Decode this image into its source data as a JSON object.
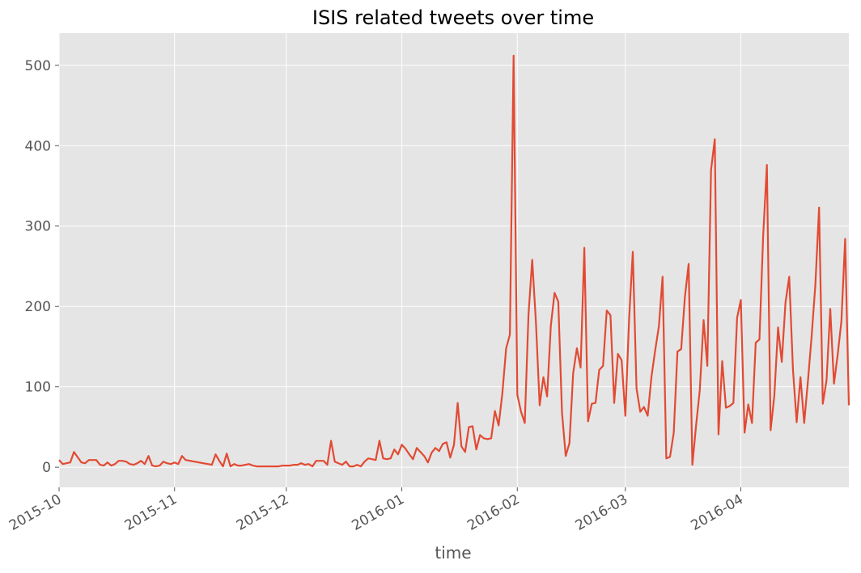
{
  "chart_data": {
    "type": "line",
    "title": "ISIS related tweets over time",
    "xlabel": "time",
    "ylabel": "",
    "x_axis": {
      "type": "date",
      "range": [
        "2015-10-01",
        "2016-04-30"
      ],
      "ticks": [
        "2015-10",
        "2015-11",
        "2015-12",
        "2016-01",
        "2016-02",
        "2016-03",
        "2016-04"
      ]
    },
    "y_axis": {
      "range": [
        -25,
        540
      ],
      "ticks": [
        "0",
        "100",
        "200",
        "300",
        "400",
        "500"
      ]
    },
    "grid": true,
    "colors": {
      "line": "#e24a33",
      "plot_bg": "#e5e5e5",
      "grid": "#ffffff"
    },
    "series": [
      {
        "dates": [
          "2015-10-01",
          "2015-10-02",
          "2015-10-03",
          "2015-10-04",
          "2015-10-05",
          "2015-10-07",
          "2015-10-08",
          "2015-10-09",
          "2015-10-11",
          "2015-10-12",
          "2015-10-13",
          "2015-10-14",
          "2015-10-15",
          "2015-10-16",
          "2015-10-17",
          "2015-10-18",
          "2015-10-19",
          "2015-10-20",
          "2015-10-21",
          "2015-10-22",
          "2015-10-23",
          "2015-10-24",
          "2015-10-25",
          "2015-10-26",
          "2015-10-27",
          "2015-10-28",
          "2015-10-29",
          "2015-10-30",
          "2015-10-31",
          "2015-11-01",
          "2015-11-02",
          "2015-11-03",
          "2015-11-04",
          "2015-11-11",
          "2015-11-12",
          "2015-11-13",
          "2015-11-14",
          "2015-11-15",
          "2015-11-16",
          "2015-11-17",
          "2015-11-18",
          "2015-11-19",
          "2015-11-20",
          "2015-11-21",
          "2015-11-22",
          "2015-11-23",
          "2015-11-24",
          "2015-11-25",
          "2015-11-26",
          "2015-11-27",
          "2015-11-28",
          "2015-11-29",
          "2015-11-30",
          "2015-12-01",
          "2015-12-02",
          "2015-12-03",
          "2015-12-04",
          "2015-12-05",
          "2015-12-06",
          "2015-12-07",
          "2015-12-08",
          "2015-12-09",
          "2015-12-10",
          "2015-12-11",
          "2015-12-12",
          "2015-12-13",
          "2015-12-14",
          "2015-12-15",
          "2015-12-16",
          "2015-12-17",
          "2015-12-18",
          "2015-12-19",
          "2015-12-20",
          "2015-12-21",
          "2015-12-22",
          "2015-12-23",
          "2015-12-24",
          "2015-12-25",
          "2015-12-26",
          "2015-12-27",
          "2015-12-28",
          "2015-12-29",
          "2015-12-30",
          "2015-12-31",
          "2016-01-01",
          "2016-01-02",
          "2016-01-03",
          "2016-01-04",
          "2016-01-05",
          "2016-01-06",
          "2016-01-07",
          "2016-01-08",
          "2016-01-09",
          "2016-01-10",
          "2016-01-11",
          "2016-01-12",
          "2016-01-13",
          "2016-01-14",
          "2016-01-15",
          "2016-01-16",
          "2016-01-17",
          "2016-01-18",
          "2016-01-19",
          "2016-01-20",
          "2016-01-21",
          "2016-01-22",
          "2016-01-23",
          "2016-01-24",
          "2016-01-25",
          "2016-01-26",
          "2016-01-27",
          "2016-01-28",
          "2016-01-29",
          "2016-01-30",
          "2016-01-31",
          "2016-02-01",
          "2016-02-02",
          "2016-02-03",
          "2016-02-04",
          "2016-02-05",
          "2016-02-06",
          "2016-02-07",
          "2016-02-08",
          "2016-02-09",
          "2016-02-10",
          "2016-02-11",
          "2016-02-12",
          "2016-02-13",
          "2016-02-14",
          "2016-02-15",
          "2016-02-16",
          "2016-02-17",
          "2016-02-18",
          "2016-02-19",
          "2016-02-20",
          "2016-02-21",
          "2016-02-22",
          "2016-02-23",
          "2016-02-24",
          "2016-02-25",
          "2016-02-26",
          "2016-02-27",
          "2016-02-28",
          "2016-02-29",
          "2016-03-01",
          "2016-03-02",
          "2016-03-03",
          "2016-03-04",
          "2016-03-05",
          "2016-03-06",
          "2016-03-07",
          "2016-03-08",
          "2016-03-09",
          "2016-03-10",
          "2016-03-11",
          "2016-03-12",
          "2016-03-13",
          "2016-03-14",
          "2016-03-15",
          "2016-03-16",
          "2016-03-17",
          "2016-03-18",
          "2016-03-19",
          "2016-03-20",
          "2016-03-21",
          "2016-03-22",
          "2016-03-23",
          "2016-03-24",
          "2016-03-25",
          "2016-03-26",
          "2016-03-27",
          "2016-03-28",
          "2016-03-29",
          "2016-03-30",
          "2016-03-31",
          "2016-04-01",
          "2016-04-02",
          "2016-04-03",
          "2016-04-04",
          "2016-04-05",
          "2016-04-06",
          "2016-04-07",
          "2016-04-08",
          "2016-04-09",
          "2016-04-10",
          "2016-04-11",
          "2016-04-12",
          "2016-04-13",
          "2016-04-14",
          "2016-04-15",
          "2016-04-16",
          "2016-04-17",
          "2016-04-18",
          "2016-04-19",
          "2016-04-20",
          "2016-04-21",
          "2016-04-22",
          "2016-04-23",
          "2016-04-24",
          "2016-04-25",
          "2016-04-26",
          "2016-04-27",
          "2016-04-28",
          "2016-04-29",
          "2016-04-30"
        ],
        "values": [
          9,
          4,
          5,
          6,
          19,
          6,
          5,
          9,
          9,
          3,
          2,
          6,
          2,
          4,
          8,
          8,
          7,
          4,
          3,
          5,
          8,
          4,
          14,
          2,
          1,
          2,
          7,
          5,
          4,
          6,
          4,
          14,
          9,
          3,
          16,
          8,
          1,
          17,
          1,
          4,
          2,
          2,
          3,
          4,
          2,
          1,
          1,
          1,
          1,
          1,
          1,
          1,
          2,
          2,
          2,
          3,
          3,
          5,
          3,
          4,
          1,
          8,
          8,
          8,
          3,
          33,
          7,
          5,
          3,
          7,
          1,
          1,
          3,
          1,
          7,
          11,
          10,
          9,
          33,
          11,
          10,
          11,
          22,
          16,
          28,
          23,
          16,
          10,
          24,
          19,
          14,
          6,
          18,
          24,
          20,
          29,
          31,
          12,
          28,
          80,
          26,
          19,
          50,
          51,
          22,
          40,
          36,
          35,
          36,
          70,
          52,
          92,
          148,
          165,
          512,
          90,
          69,
          55,
          190,
          258,
          180,
          77,
          112,
          88,
          176,
          217,
          206,
          68,
          14,
          30,
          117,
          148,
          124,
          273,
          57,
          79,
          80,
          121,
          126,
          195,
          189,
          80,
          141,
          133,
          64,
          184,
          268,
          98,
          69,
          75,
          64,
          112,
          145,
          175,
          237,
          11,
          13,
          43,
          144,
          147,
          212,
          253,
          3,
          52,
          96,
          183,
          126,
          370,
          408,
          41,
          132,
          74,
          76,
          80,
          186,
          208,
          43,
          78,
          55,
          155,
          159,
          288,
          376,
          46,
          89,
          174,
          131,
          205,
          237,
          122,
          56,
          112,
          55,
          107,
          163,
          227,
          323,
          79,
          108,
          197,
          104,
          140,
          182,
          284,
          77
        ]
      }
    ]
  }
}
